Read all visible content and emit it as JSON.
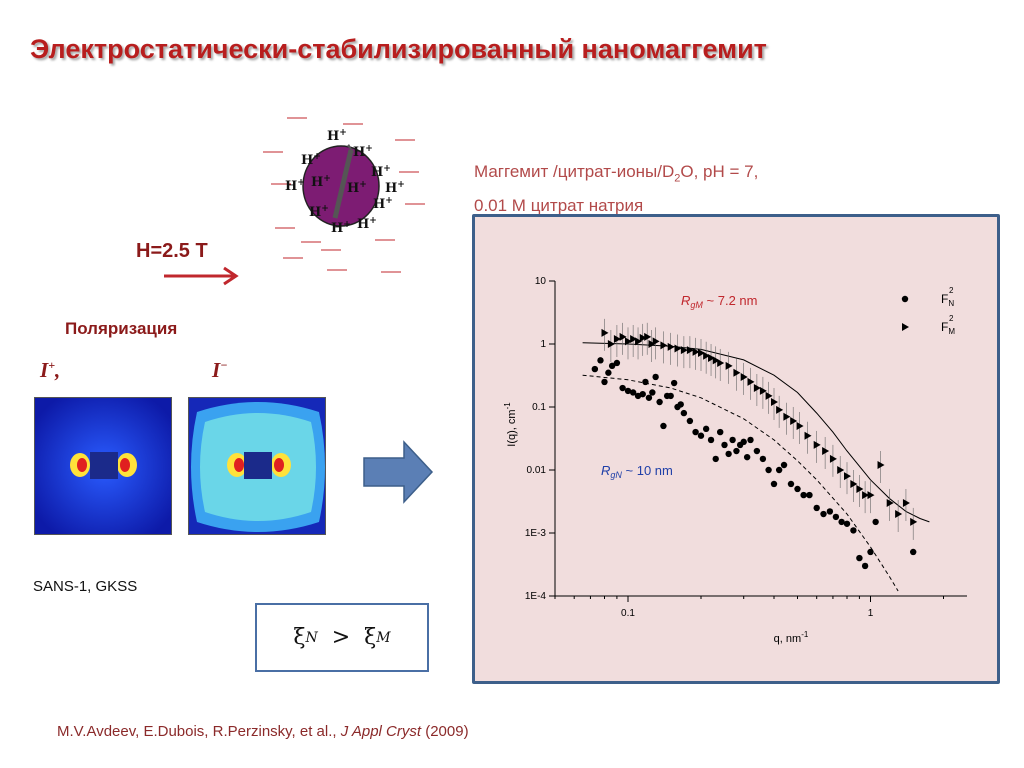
{
  "title": "Электростатически-стабилизированный наномаггемит",
  "sample": {
    "line1": "Маггемит /цитрат-ионы/D",
    "line1_sub": "2",
    "line1_end": "O, pH = 7,",
    "line2": "0.01 M цитрат натрия"
  },
  "field_label": "H=2.5 T",
  "polarization_label": "Поляризация",
  "pol_plus": "I",
  "pol_plus_sup": "+",
  "pol_plus_comma": ",",
  "pol_minus": "I",
  "pol_minus_sup": "−",
  "instrument": "SANS-1, GKSS",
  "xi": {
    "left": "ξ",
    "left_sub": "N",
    "op": ">",
    "right": "ξ",
    "right_sub": "M"
  },
  "citation": {
    "authors": "M.V.Avdeev, E.Dubois, R.Perzinsky, et al., ",
    "journal": "J Appl Cryst",
    "year": " (2009)"
  },
  "particle": {
    "ion": "H",
    "ion_sup": "+",
    "color": "#7d1c73"
  },
  "colors": {
    "title": "#b81e1e",
    "arrow_red": "#c0272d",
    "arrow_blue": "#5b7fb5",
    "frame_border": "#3d5f8a",
    "frame_bg": "#f1dddd"
  },
  "chart_data": {
    "type": "scatter",
    "xlabel": "q, nm",
    "xlabel_sup": "-1",
    "ylabel": "I(q), cm",
    "ylabel_sup": "-1",
    "xscale": "log",
    "yscale": "log",
    "xlim": [
      0.05,
      2.5
    ],
    "ylim": [
      0.0001,
      10
    ],
    "xticks": [
      {
        "v": 0.1,
        "label": "0.1"
      },
      {
        "v": 1,
        "label": "1"
      }
    ],
    "yticks": [
      {
        "v": 10,
        "label": "10"
      },
      {
        "v": 1,
        "label": "1"
      },
      {
        "v": 0.1,
        "label": "0.1"
      },
      {
        "v": 0.01,
        "label": "0.01"
      },
      {
        "v": 0.001,
        "label": "1E-3"
      },
      {
        "v": 0.0001,
        "label": "1E-4"
      }
    ],
    "annotations": [
      {
        "name": "rgm",
        "prefix": "R",
        "sub": "gM",
        "text": " ~ 7.2 nm",
        "color": "#c0272d"
      },
      {
        "name": "rgn",
        "prefix": "R",
        "sub": "gN",
        "text": " ~ 10 nm",
        "color": "#1f3fa8"
      }
    ],
    "legend": [
      {
        "label": "F",
        "sup": "2",
        "sub": "N",
        "marker": "circle"
      },
      {
        "label": "F",
        "sup": "2",
        "sub": "M",
        "marker": "triangle"
      }
    ],
    "legend_position": "top-right",
    "series": [
      {
        "name": "F_N^2",
        "marker": "circle",
        "color": "#000000",
        "x": [
          0.073,
          0.077,
          0.08,
          0.083,
          0.086,
          0.09,
          0.095,
          0.1,
          0.105,
          0.11,
          0.115,
          0.118,
          0.122,
          0.126,
          0.13,
          0.135,
          0.14,
          0.145,
          0.15,
          0.155,
          0.16,
          0.165,
          0.17,
          0.18,
          0.19,
          0.2,
          0.21,
          0.22,
          0.23,
          0.24,
          0.25,
          0.26,
          0.27,
          0.28,
          0.29,
          0.3,
          0.31,
          0.32,
          0.34,
          0.36,
          0.38,
          0.4,
          0.42,
          0.44,
          0.47,
          0.5,
          0.53,
          0.56,
          0.6,
          0.64,
          0.68,
          0.72,
          0.76,
          0.8,
          0.85,
          0.9,
          0.95,
          1.0,
          1.05,
          1.5
        ],
        "y": [
          0.4,
          0.55,
          0.25,
          0.35,
          0.45,
          0.5,
          0.2,
          0.18,
          0.17,
          0.15,
          0.16,
          0.25,
          0.14,
          0.17,
          0.3,
          0.12,
          0.05,
          0.15,
          0.15,
          0.24,
          0.1,
          0.11,
          0.08,
          0.06,
          0.04,
          0.035,
          0.045,
          0.03,
          0.015,
          0.04,
          0.025,
          0.018,
          0.03,
          0.02,
          0.025,
          0.028,
          0.016,
          0.03,
          0.02,
          0.015,
          0.01,
          0.006,
          0.01,
          0.012,
          0.006,
          0.005,
          0.004,
          0.004,
          0.0025,
          0.002,
          0.0022,
          0.0018,
          0.0015,
          0.0014,
          0.0011,
          0.0004,
          0.0003,
          0.0005,
          0.0015,
          0.0005
        ]
      },
      {
        "name": "F_M^2",
        "marker": "triangle",
        "color": "#000000",
        "x": [
          0.08,
          0.085,
          0.09,
          0.095,
          0.1,
          0.105,
          0.11,
          0.115,
          0.12,
          0.125,
          0.13,
          0.14,
          0.15,
          0.16,
          0.17,
          0.18,
          0.19,
          0.2,
          0.21,
          0.22,
          0.23,
          0.24,
          0.26,
          0.28,
          0.3,
          0.32,
          0.34,
          0.36,
          0.38,
          0.4,
          0.42,
          0.45,
          0.48,
          0.51,
          0.55,
          0.6,
          0.65,
          0.7,
          0.75,
          0.8,
          0.85,
          0.9,
          0.95,
          1.0,
          1.1,
          1.2,
          1.3,
          1.4,
          1.5
        ],
        "y": [
          1.5,
          1.0,
          1.2,
          1.3,
          1.1,
          1.2,
          1.1,
          1.25,
          1.3,
          1.0,
          1.1,
          0.95,
          0.9,
          0.85,
          0.8,
          0.8,
          0.75,
          0.72,
          0.65,
          0.6,
          0.55,
          0.5,
          0.45,
          0.35,
          0.3,
          0.25,
          0.2,
          0.18,
          0.15,
          0.12,
          0.09,
          0.07,
          0.06,
          0.05,
          0.035,
          0.025,
          0.02,
          0.015,
          0.01,
          0.008,
          0.006,
          0.005,
          0.004,
          0.004,
          0.012,
          0.003,
          0.002,
          0.003,
          0.0015
        ]
      }
    ],
    "fits": [
      {
        "name": "fit-magnetic",
        "style": "solid",
        "x": [
          0.065,
          0.1,
          0.15,
          0.2,
          0.3,
          0.4,
          0.5,
          0.6,
          0.7,
          0.8,
          1.0,
          1.2,
          1.4,
          1.6,
          1.75
        ],
        "y": [
          1.05,
          1.0,
          0.92,
          0.82,
          0.56,
          0.32,
          0.17,
          0.08,
          0.04,
          0.02,
          0.007,
          0.0035,
          0.0022,
          0.0017,
          0.0015
        ]
      },
      {
        "name": "fit-nuclear",
        "style": "dashed",
        "x": [
          0.065,
          0.1,
          0.15,
          0.2,
          0.3,
          0.4,
          0.5,
          0.6,
          0.8,
          1.0,
          1.2,
          1.3
        ],
        "y": [
          0.32,
          0.27,
          0.2,
          0.14,
          0.065,
          0.03,
          0.014,
          0.007,
          0.002,
          0.0006,
          0.0002,
          0.00012
        ]
      }
    ]
  }
}
